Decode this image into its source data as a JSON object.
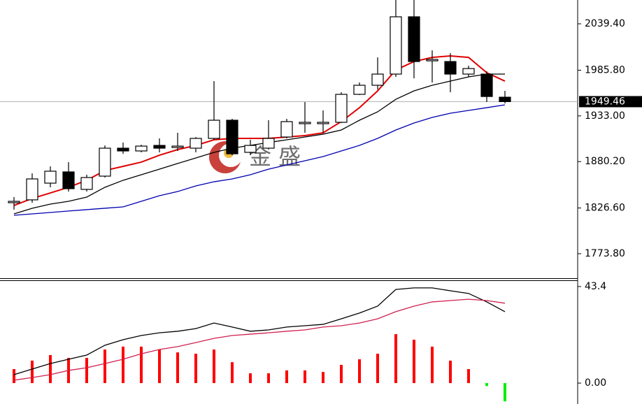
{
  "chart_data": [
    {
      "type": "candlestick",
      "watermark": "金 盛",
      "ylim": [
        1745.5,
        2066.9
      ],
      "yticks": [
        {
          "value": 2039.4,
          "label": "2039.40"
        },
        {
          "value": 1985.8,
          "label": "1985.80"
        },
        {
          "value": 1933,
          "label": "1933.00"
        },
        {
          "value": 1880.2,
          "label": "1880.20"
        },
        {
          "value": 1826.6,
          "label": "1826.60"
        },
        {
          "value": 1773.8,
          "label": "1773.80"
        }
      ],
      "current_price": 1949.46,
      "open": [
        1832.7,
        1836.0,
        1855.3,
        1868.3,
        1848.1,
        1863.4,
        1895.7,
        1892.5,
        1898.9,
        1896.5,
        1895.7,
        1907.0,
        1928.0,
        1890.9,
        1895.7,
        1908.6,
        1924.0,
        1924.0,
        1925.6,
        1957.9,
        1968.4,
        1981.3,
        2047.5,
        1996.6,
        1995.8,
        1981.3,
        1981.3,
        1954.6
      ],
      "high": [
        1839.2,
        1866.6,
        1874.7,
        1879.6,
        1865.0,
        1898.9,
        1902.2,
        1899.7,
        1907.0,
        1913.5,
        1908.6,
        1973.2,
        1929.6,
        1905.4,
        1928.0,
        1929.6,
        1949.0,
        1939.3,
        1960.3,
        1971.6,
        2000.6,
        2070.0,
        2070.0,
        2008.7,
        2005.5,
        1991.0,
        1984.5,
        1961.9
      ],
      "low": [
        1824.7,
        1832.7,
        1850.5,
        1845.6,
        1845.6,
        1861.8,
        1889.2,
        1890.9,
        1890.9,
        1892.5,
        1890.9,
        1905.4,
        1887.6,
        1887.6,
        1894.1,
        1907.0,
        1913.5,
        1913.5,
        1924.8,
        1957.1,
        1963.5,
        1978.1,
        1976.4,
        1971.6,
        1960.3,
        1978.1,
        1949.0,
        1947.4
      ],
      "close": [
        1834.3,
        1860.2,
        1869.1,
        1848.9,
        1861.8,
        1895.7,
        1892.5,
        1898.1,
        1895.7,
        1898.1,
        1907.0,
        1928.0,
        1889.2,
        1898.9,
        1907.0,
        1926.4,
        1925.6,
        1925.6,
        1957.9,
        1968.4,
        1981.3,
        2047.5,
        1995.8,
        1998.2,
        1981.3,
        1987.7,
        1955.4,
        1949.5
      ],
      "series": [
        {
          "color": "#e00000",
          "values": [
            1829.5,
            1837.6,
            1844.0,
            1850.5,
            1858.6,
            1869.9,
            1874.7,
            1879.6,
            1887.6,
            1894.1,
            1898.9,
            1905.4,
            1907.0,
            1907.0,
            1907.0,
            1908.6,
            1910.2,
            1913.5,
            1926.4,
            1942.5,
            1961.9,
            1986.1,
            1995.8,
            2000.6,
            2002.3,
            2000.6,
            1982.9,
            1973.2
          ]
        },
        {
          "color": "#000000",
          "values": [
            1819.8,
            1826.3,
            1831.1,
            1834.3,
            1839.2,
            1850.5,
            1858.6,
            1865.0,
            1871.5,
            1878.0,
            1884.4,
            1890.9,
            1895.7,
            1898.9,
            1902.2,
            1905.4,
            1908.6,
            1911.9,
            1916.7,
            1928.0,
            1937.7,
            1952.2,
            1961.9,
            1968.4,
            1973.2,
            1978.1,
            1981.3,
            1981.3
          ]
        },
        {
          "color": "#0000b0",
          "values": [
            1818.2,
            1819.8,
            1821.4,
            1823.1,
            1824.7,
            1826.3,
            1827.9,
            1834.3,
            1840.8,
            1845.6,
            1852.1,
            1856.9,
            1860.2,
            1865.0,
            1871.5,
            1876.3,
            1881.2,
            1886.0,
            1892.5,
            1898.9,
            1907.0,
            1916.7,
            1924.8,
            1931.2,
            1936.1,
            1939.3,
            1942.5,
            1945.8
          ]
        }
      ]
    },
    {
      "type": "bar",
      "ylim": [
        -9.4,
        45.9
      ],
      "yticks": [
        43.4,
        {
          "value": 0,
          "label": "0.00"
        }
      ],
      "colors": {
        "positive": "#ff0000",
        "negative": "#00ee00"
      },
      "values": [
        6.3,
        10.1,
        12.6,
        11.3,
        11.3,
        15.1,
        16.4,
        16.4,
        15.1,
        13.8,
        13.2,
        15.1,
        9.4,
        4.4,
        4.4,
        5.7,
        5.7,
        5.0,
        8.2,
        10.7,
        13.2,
        22.0,
        19.5,
        16.4,
        10.1,
        6.3,
        -1.3,
        -8.2
      ],
      "series": [
        {
          "color": "#000000",
          "values": [
            3.8,
            6.3,
            8.8,
            10.7,
            12.6,
            17.0,
            19.5,
            21.4,
            22.6,
            23.3,
            24.5,
            27.0,
            25.2,
            23.3,
            23.9,
            25.2,
            25.8,
            26.4,
            28.9,
            31.5,
            34.6,
            42.1,
            42.8,
            42.8,
            41.5,
            40.3,
            36.5,
            32.1
          ]
        },
        {
          "color": "#d02050",
          "values": [
            1.3,
            2.5,
            3.8,
            5.7,
            6.9,
            8.8,
            10.7,
            13.2,
            15.1,
            16.4,
            18.2,
            20.1,
            21.4,
            22.0,
            22.6,
            23.3,
            23.9,
            25.2,
            25.8,
            27.0,
            28.9,
            32.1,
            34.6,
            36.5,
            37.1,
            37.7,
            37.1,
            35.9
          ]
        }
      ]
    }
  ]
}
